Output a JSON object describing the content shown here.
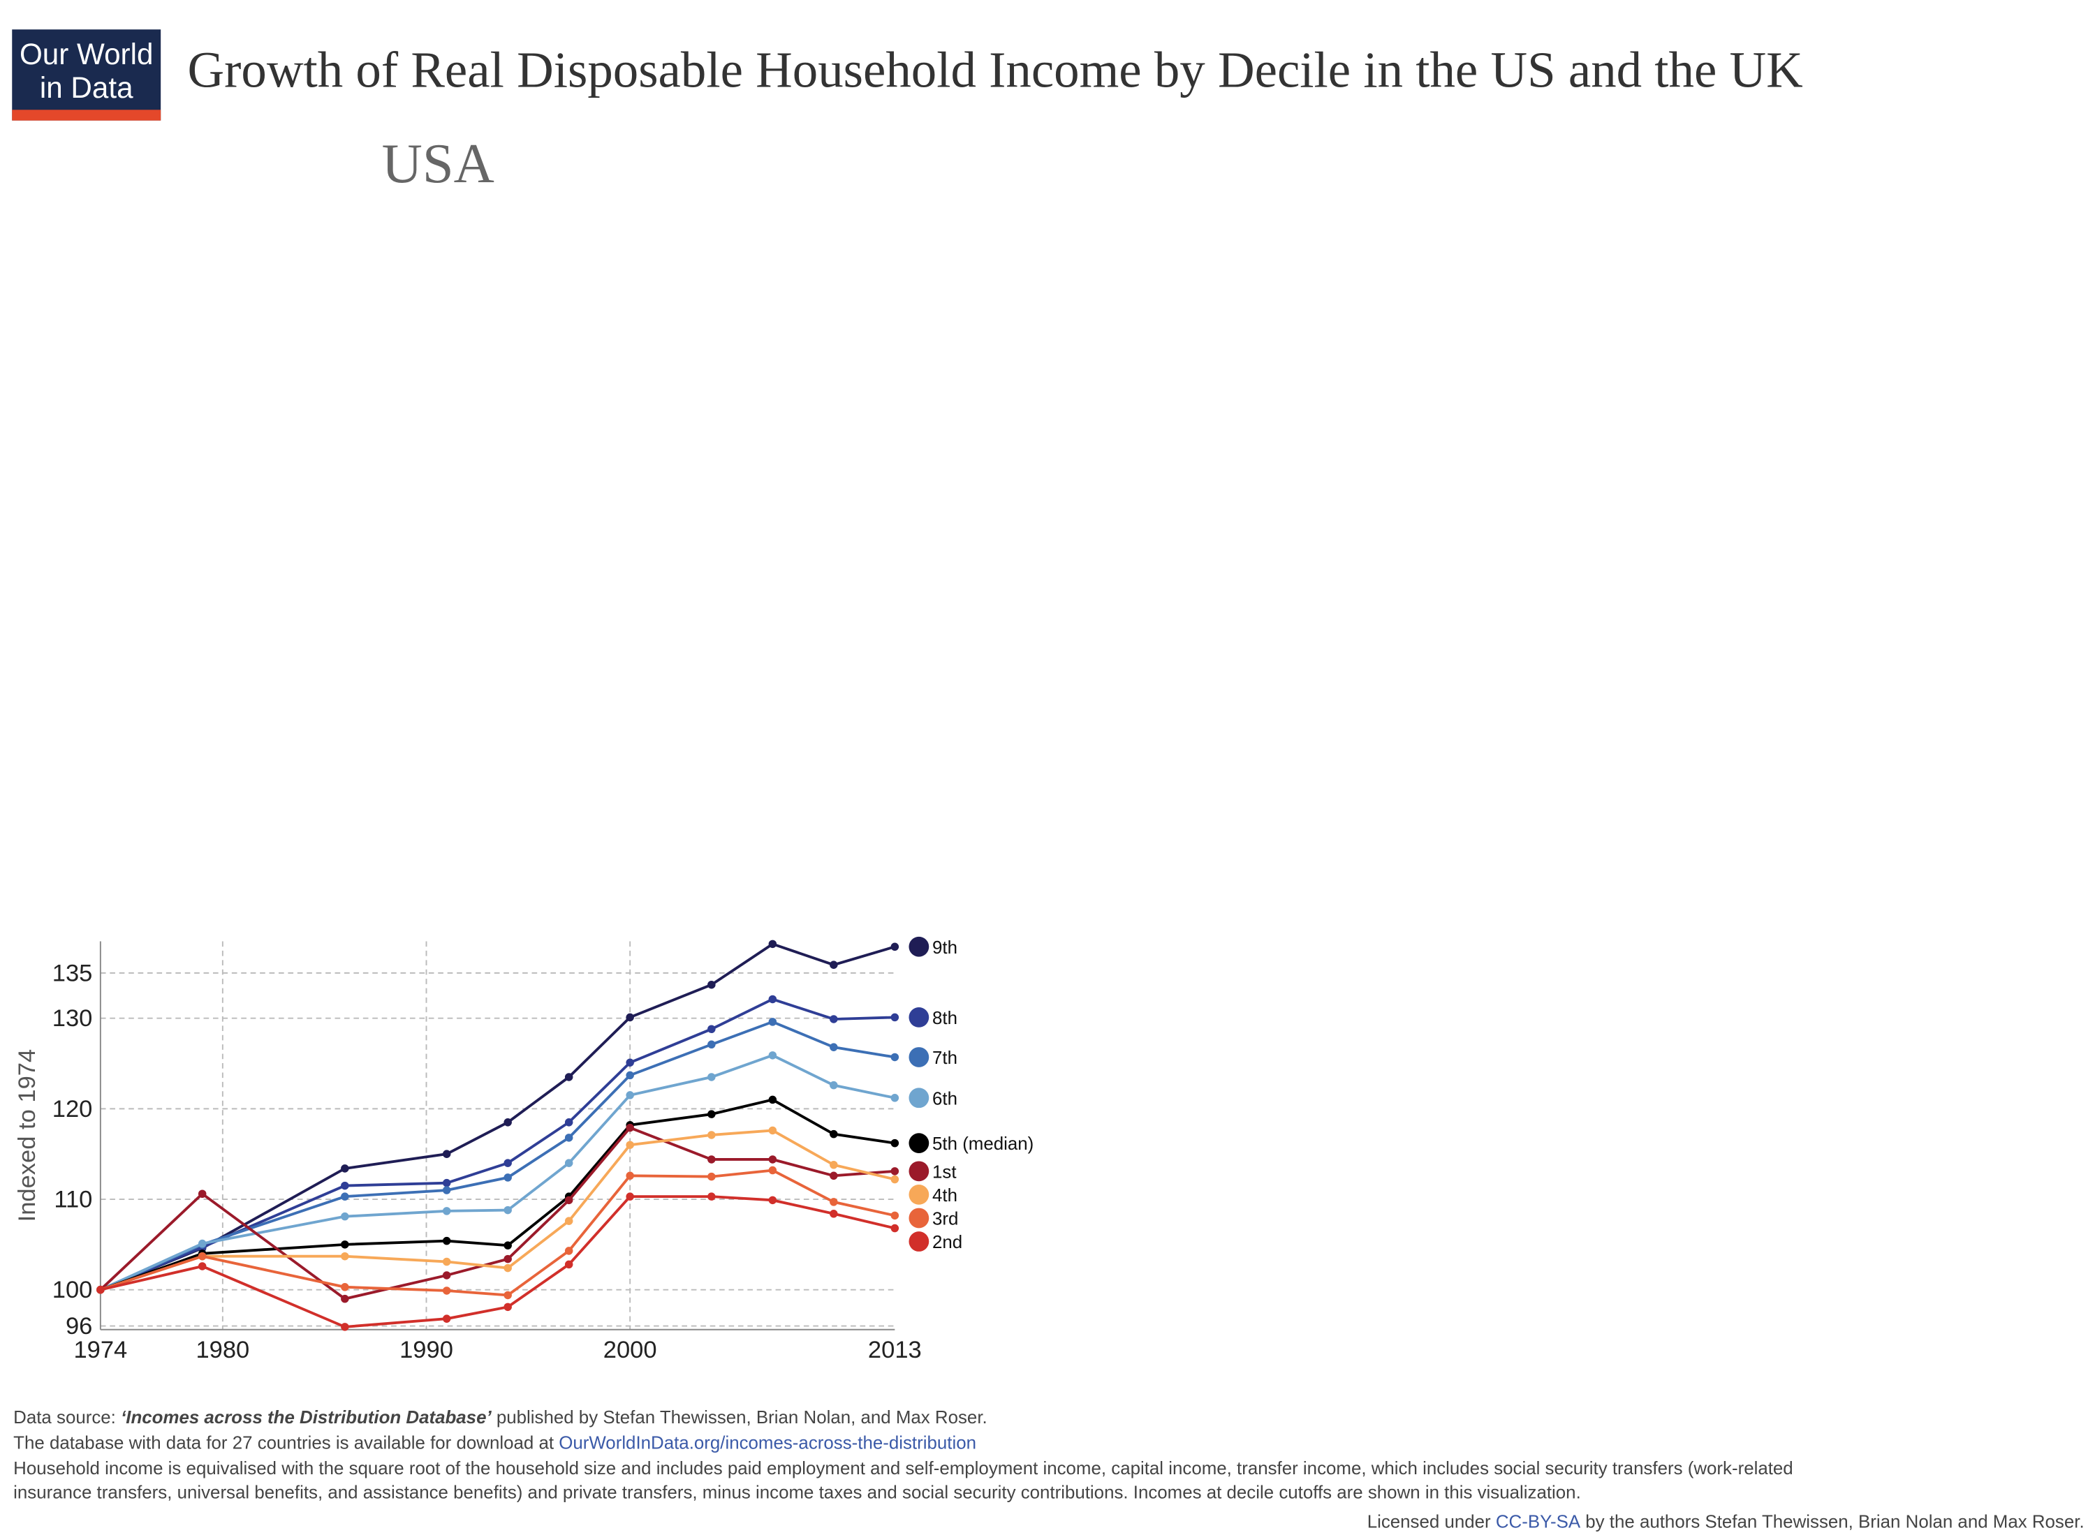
{
  "header": {
    "logo": [
      "Our World",
      "in Data"
    ]
  },
  "chart_data": {
    "type": "line",
    "title": "Growth of Real Disposable Household Income by Decile in the US and the UK",
    "subtitle": "USA",
    "y_label": "Indexed to 1974",
    "x": [
      1974,
      1979,
      1986,
      1991,
      1994,
      1997,
      2000,
      2004,
      2007,
      2010,
      2013
    ],
    "xlim": [
      1974,
      2013
    ],
    "xticks": [
      1974,
      1980,
      1990,
      2000,
      2013
    ],
    "ylim": [
      95.6,
      138.5
    ],
    "yticks": [
      96,
      100,
      110,
      120,
      130,
      135
    ],
    "grid": true,
    "series": [
      {
        "name": "9th",
        "color": "#1f1d55",
        "values": [
          100,
          104.6,
          113.4,
          115.0,
          118.5,
          123.5,
          130.1,
          133.7,
          138.2,
          135.9,
          137.9
        ]
      },
      {
        "name": "8th",
        "color": "#2f3e96",
        "values": [
          100,
          104.7,
          111.5,
          111.8,
          114.0,
          118.5,
          125.1,
          128.8,
          132.1,
          129.9,
          130.1
        ]
      },
      {
        "name": "7th",
        "color": "#3c6fb5",
        "values": [
          100,
          105.0,
          110.3,
          111.0,
          112.4,
          116.8,
          123.7,
          127.1,
          129.6,
          126.8,
          125.7
        ]
      },
      {
        "name": "6th",
        "color": "#6fa5cf",
        "values": [
          100,
          105.1,
          108.1,
          108.7,
          108.8,
          114.0,
          121.5,
          123.5,
          125.9,
          122.6,
          121.2
        ]
      },
      {
        "name": "5th (median)",
        "color": "#000000",
        "values": [
          100,
          104.0,
          105.0,
          105.4,
          104.9,
          110.3,
          118.2,
          119.4,
          121.0,
          117.2,
          116.2
        ]
      },
      {
        "name": "1st",
        "color": "#9b1a2a",
        "values": [
          100,
          110.6,
          99.0,
          101.6,
          103.4,
          109.9,
          117.9,
          114.4,
          114.4,
          112.6,
          113.1
        ]
      },
      {
        "name": "4th",
        "color": "#f7a858",
        "values": [
          100,
          103.7,
          103.7,
          103.1,
          102.4,
          107.6,
          116.0,
          117.1,
          117.6,
          113.8,
          112.2
        ]
      },
      {
        "name": "3rd",
        "color": "#e8643a",
        "values": [
          100,
          103.7,
          100.3,
          99.9,
          99.4,
          104.3,
          112.6,
          112.5,
          113.2,
          109.7,
          108.2
        ]
      },
      {
        "name": "2nd",
        "color": "#d12f2a",
        "values": [
          100,
          102.6,
          95.9,
          96.8,
          98.1,
          102.8,
          110.3,
          110.3,
          109.9,
          108.4,
          106.8
        ]
      }
    ]
  },
  "footer": {
    "source_label": "Data source: ",
    "source_title": "‘Incomes across the Distribution Database’",
    "source_rest": " published by Stefan Thewissen, Brian Nolan, and Max Roser.",
    "download_text": "The database with data for 27 countries is available for download at ",
    "download_link": "OurWorldInData.org/incomes-across-the-distribution",
    "note_lines": [
      "Household income is equivalised with the square root of the household size and includes paid employment and self-employment income, capital income, transfer income, which includes social security transfers (work-related",
      "insurance transfers, universal benefits, and assistance benefits) and private transfers, minus income taxes and social security contributions. Incomes at decile cutoffs are shown in this visualization."
    ],
    "license_prefix": "Licensed under ",
    "license_link": "CC-BY-SA",
    "license_suffix": " by the authors Stefan Thewissen, Brian Nolan and Max Roser."
  }
}
